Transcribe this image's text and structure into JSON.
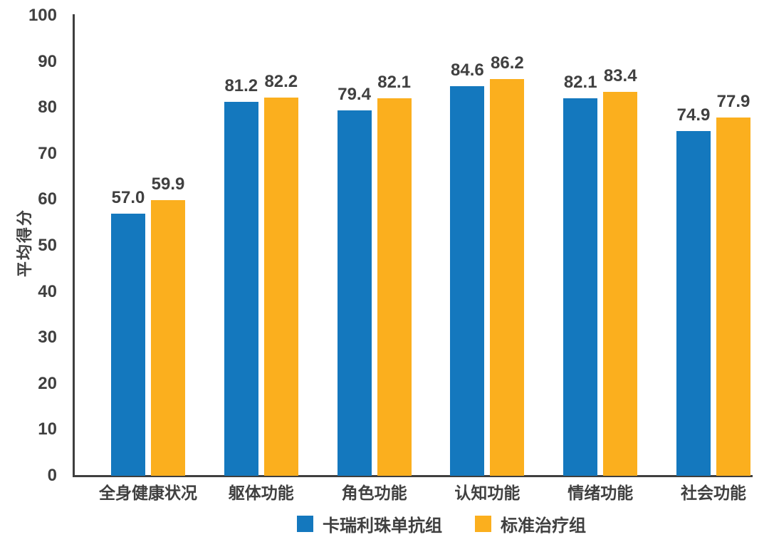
{
  "chart_data": {
    "type": "bar",
    "title": "",
    "xlabel": "",
    "ylabel": "平均得分",
    "ylim": [
      0,
      100
    ],
    "yticks": [
      0,
      10,
      20,
      30,
      40,
      50,
      60,
      70,
      80,
      90,
      100
    ],
    "grid": false,
    "legend_position": "bottom",
    "value_labels": true,
    "categories": [
      "全身健康状况",
      "躯体功能",
      "角色功能",
      "认知功能",
      "情绪功能",
      "社会功能"
    ],
    "series": [
      {
        "name": "卡瑞利珠单抗组",
        "color": "#1478BE",
        "values": [
          57.0,
          81.2,
          79.4,
          84.6,
          82.1,
          74.9
        ]
      },
      {
        "name": "标准治疗组",
        "color": "#FBAF1E",
        "values": [
          59.9,
          82.2,
          82.1,
          86.2,
          83.4,
          77.9
        ]
      }
    ],
    "text_color": "#404040",
    "axis_color": "#3F3F3F"
  }
}
